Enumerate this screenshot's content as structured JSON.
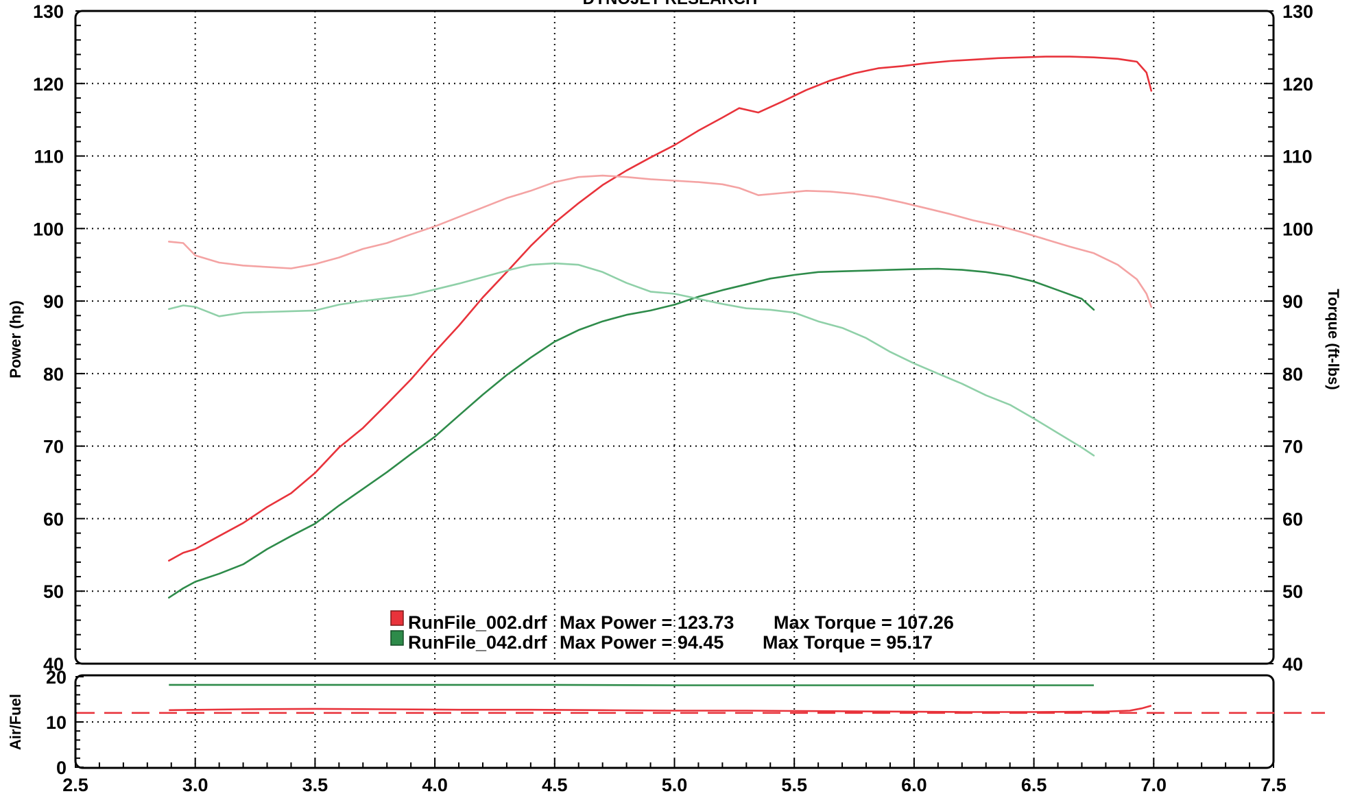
{
  "header": {
    "title": "DYNOJET RESEARCH"
  },
  "chart_data": [
    {
      "type": "line",
      "title": "DYNOJET RESEARCH",
      "xlabel": "",
      "ylabel": "Power (hp)",
      "y2label": "Torque (ft-lbs)",
      "xlim": [
        2.5,
        7.5
      ],
      "ylim": [
        40,
        130
      ],
      "y2lim": [
        40,
        130
      ],
      "x_ticks": [
        "2.5",
        "3.0",
        "3.5",
        "4.0",
        "4.5",
        "5.0",
        "5.5",
        "6.0",
        "6.5",
        "7.0",
        "7.5"
      ],
      "y_ticks": [
        "40",
        "50",
        "60",
        "70",
        "80",
        "90",
        "100",
        "110",
        "120",
        "130"
      ],
      "y2_ticks": [
        "40",
        "50",
        "60",
        "70",
        "80",
        "90",
        "100",
        "110",
        "120",
        "130"
      ],
      "grid": true,
      "series": [
        {
          "name": "RunFile_002.drf",
          "measure": "power",
          "color": "#e8333b",
          "x": [
            2.89,
            2.95,
            3.0,
            3.1,
            3.2,
            3.3,
            3.4,
            3.5,
            3.6,
            3.7,
            3.8,
            3.9,
            4.0,
            4.1,
            4.2,
            4.3,
            4.4,
            4.5,
            4.6,
            4.7,
            4.8,
            4.9,
            5.0,
            5.1,
            5.2,
            5.27,
            5.35,
            5.45,
            5.55,
            5.65,
            5.75,
            5.85,
            5.95,
            6.05,
            6.15,
            6.25,
            6.35,
            6.45,
            6.55,
            6.65,
            6.75,
            6.85,
            6.93,
            6.97,
            6.99
          ],
          "y": [
            54.2,
            55.3,
            55.8,
            57.6,
            59.4,
            61.6,
            63.5,
            66.3,
            69.8,
            72.5,
            75.8,
            79.2,
            83.0,
            86.6,
            90.5,
            94.0,
            97.6,
            100.8,
            103.5,
            106.0,
            108.0,
            109.8,
            111.5,
            113.5,
            115.3,
            116.6,
            116.0,
            117.5,
            119.1,
            120.4,
            121.4,
            122.1,
            122.4,
            122.8,
            123.1,
            123.3,
            123.5,
            123.6,
            123.7,
            123.7,
            123.6,
            123.4,
            123.0,
            121.5,
            119.0
          ]
        },
        {
          "name": "RunFile_002.drf",
          "measure": "torque",
          "color": "#f4a3a3",
          "x": [
            2.89,
            2.95,
            3.0,
            3.1,
            3.2,
            3.3,
            3.4,
            3.5,
            3.6,
            3.7,
            3.8,
            3.9,
            4.0,
            4.1,
            4.2,
            4.3,
            4.4,
            4.5,
            4.6,
            4.7,
            4.8,
            4.9,
            5.0,
            5.1,
            5.2,
            5.27,
            5.35,
            5.45,
            5.55,
            5.65,
            5.75,
            5.85,
            5.95,
            6.05,
            6.15,
            6.25,
            6.35,
            6.45,
            6.55,
            6.65,
            6.75,
            6.85,
            6.93,
            6.97,
            6.99
          ],
          "y": [
            98.2,
            98.0,
            96.3,
            95.3,
            94.9,
            94.7,
            94.5,
            95.1,
            96.0,
            97.2,
            98.0,
            99.2,
            100.3,
            101.6,
            102.9,
            104.2,
            105.2,
            106.4,
            107.1,
            107.3,
            107.1,
            106.8,
            106.6,
            106.4,
            106.1,
            105.6,
            104.6,
            104.9,
            105.2,
            105.1,
            104.8,
            104.3,
            103.6,
            102.8,
            102.0,
            101.1,
            100.4,
            99.5,
            98.5,
            97.5,
            96.6,
            95.0,
            93.0,
            91.0,
            89.2
          ]
        },
        {
          "name": "RunFile_042.drf",
          "measure": "power",
          "color": "#2e8b4a",
          "x": [
            2.89,
            2.95,
            3.0,
            3.1,
            3.2,
            3.3,
            3.4,
            3.5,
            3.6,
            3.7,
            3.8,
            3.9,
            4.0,
            4.1,
            4.2,
            4.3,
            4.4,
            4.5,
            4.6,
            4.7,
            4.8,
            4.9,
            5.0,
            5.1,
            5.2,
            5.3,
            5.4,
            5.5,
            5.6,
            5.7,
            5.8,
            5.9,
            6.0,
            6.1,
            6.2,
            6.3,
            6.4,
            6.5,
            6.6,
            6.7,
            6.75
          ],
          "y": [
            49.1,
            50.4,
            51.3,
            52.4,
            53.7,
            55.8,
            57.6,
            59.3,
            61.8,
            64.1,
            66.4,
            68.9,
            71.3,
            74.2,
            77.1,
            79.8,
            82.2,
            84.4,
            86.0,
            87.2,
            88.1,
            88.7,
            89.5,
            90.6,
            91.5,
            92.3,
            93.1,
            93.6,
            94.0,
            94.1,
            94.2,
            94.3,
            94.4,
            94.45,
            94.3,
            94.0,
            93.5,
            92.7,
            91.5,
            90.3,
            88.8
          ]
        },
        {
          "name": "RunFile_042.drf",
          "measure": "torque",
          "color": "#8fd0a8",
          "x": [
            2.89,
            2.95,
            3.0,
            3.1,
            3.2,
            3.3,
            3.4,
            3.5,
            3.6,
            3.7,
            3.8,
            3.9,
            4.0,
            4.1,
            4.2,
            4.3,
            4.4,
            4.5,
            4.6,
            4.7,
            4.8,
            4.9,
            5.0,
            5.1,
            5.2,
            5.3,
            5.4,
            5.5,
            5.6,
            5.7,
            5.8,
            5.9,
            6.0,
            6.1,
            6.2,
            6.3,
            6.4,
            6.5,
            6.6,
            6.7,
            6.75
          ],
          "y": [
            88.9,
            89.4,
            89.2,
            87.9,
            88.4,
            88.5,
            88.6,
            88.7,
            89.5,
            90.0,
            90.4,
            90.8,
            91.6,
            92.4,
            93.3,
            94.2,
            95.0,
            95.2,
            95.0,
            94.0,
            92.5,
            91.3,
            91.0,
            90.3,
            89.6,
            89.0,
            88.8,
            88.4,
            87.2,
            86.3,
            84.9,
            83.0,
            81.4,
            80.0,
            78.6,
            77.0,
            75.7,
            73.8,
            71.8,
            69.8,
            68.7
          ]
        }
      ]
    },
    {
      "type": "line",
      "ylabel": "Air/Fuel",
      "xlim": [
        2.5,
        7.5
      ],
      "ylim": [
        0,
        20
      ],
      "x_ticks": [
        "2.5",
        "3.0",
        "3.5",
        "4.0",
        "4.5",
        "5.0",
        "5.5",
        "6.0",
        "6.5",
        "7.0",
        "7.5"
      ],
      "y_ticks": [
        "0",
        "10",
        "20"
      ],
      "grid": true,
      "reference_line": {
        "y": 12.0,
        "color": "#e8333b",
        "style": "dashed"
      },
      "series": [
        {
          "name": "RunFile_002.drf",
          "color": "#e8333b",
          "x": [
            2.89,
            3.2,
            3.5,
            3.8,
            4.1,
            4.4,
            4.7,
            5.0,
            5.3,
            5.6,
            5.9,
            6.2,
            6.5,
            6.8,
            6.9,
            6.95,
            6.99
          ],
          "y": [
            12.6,
            12.8,
            12.9,
            12.8,
            12.7,
            12.7,
            12.6,
            12.5,
            12.5,
            12.4,
            12.3,
            12.2,
            12.2,
            12.3,
            12.5,
            13.0,
            13.6
          ]
        },
        {
          "name": "RunFile_042.drf",
          "color": "#2e8b4a",
          "x": [
            2.89,
            3.5,
            4.0,
            4.5,
            5.0,
            5.5,
            6.0,
            6.5,
            6.75
          ],
          "y": [
            18.2,
            18.2,
            18.2,
            18.2,
            18.1,
            18.1,
            18.1,
            18.1,
            18.1
          ]
        }
      ]
    }
  ],
  "legend": {
    "position": "bottom-center",
    "entries": [
      {
        "file": "RunFile_002.drf",
        "power_text": "Max Power = 123.73",
        "torque_text": "Max Torque = 107.26",
        "color": "#e8333b"
      },
      {
        "file": "RunFile_042.drf",
        "power_text": "Max Power = 94.45",
        "torque_text": "Max Torque = 95.17",
        "color": "#2e8b4a"
      }
    ]
  }
}
